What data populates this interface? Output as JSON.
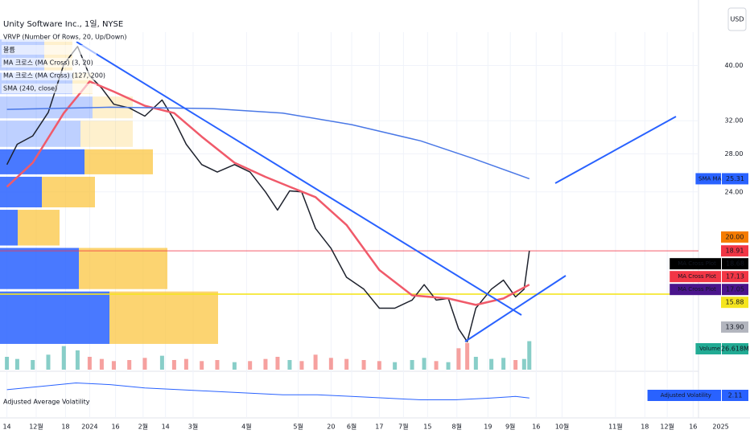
{
  "header": {
    "title": "Unity Software Inc., 1일, NYSE",
    "currency": "USD"
  },
  "legend": [
    "VRVP (Number Of Rows, 20, Up/Down)",
    "볼륨",
    "MA 크로스 (MA Cross) (3, 20)",
    "MA 크로스 (MA Cross) (127, 200)",
    "SMA (240, close)"
  ],
  "chart_data": {
    "type": "line",
    "log_scale": true,
    "grid": true,
    "xlim": [
      -4,
      431
    ],
    "ylim": [
      11.7,
      44.6
    ],
    "xticks": [
      {
        "value": 0,
        "label": "14"
      },
      {
        "value": 17,
        "label": "12월"
      },
      {
        "value": 34,
        "label": "18"
      },
      {
        "value": 48,
        "label": "2024"
      },
      {
        "value": 63,
        "label": "16"
      },
      {
        "value": 79,
        "label": "2월"
      },
      {
        "value": 92,
        "label": "14"
      },
      {
        "value": 108,
        "label": "3월"
      },
      {
        "value": 139,
        "label": "4월"
      },
      {
        "value": 169,
        "label": "5월"
      },
      {
        "value": 188,
        "label": "20"
      },
      {
        "value": 200,
        "label": "6월"
      },
      {
        "value": 216,
        "label": "17"
      },
      {
        "value": 230,
        "label": "7월"
      },
      {
        "value": 244,
        "label": "15"
      },
      {
        "value": 261,
        "label": "8월"
      },
      {
        "value": 279,
        "label": "19"
      },
      {
        "value": 292,
        "label": "9월"
      },
      {
        "value": 307,
        "label": "16"
      },
      {
        "value": 322,
        "label": "10월"
      },
      {
        "value": 353,
        "label": "11월"
      },
      {
        "value": 370,
        "label": "18"
      },
      {
        "value": 383,
        "label": "12월"
      },
      {
        "value": 398,
        "label": "16"
      },
      {
        "value": 414,
        "label": "2025"
      }
    ],
    "yticks": [
      {
        "value": 40,
        "label": "40.00"
      },
      {
        "value": 32,
        "label": "32.00"
      },
      {
        "value": 28,
        "label": "28.00"
      },
      {
        "value": 24,
        "label": "24.00"
      }
    ],
    "series": [
      {
        "color": "#1e222d",
        "x": [
          0,
          6,
          15,
          24,
          33,
          41,
          48,
          55,
          62,
          71,
          80,
          90,
          97,
          104,
          113,
          122,
          132,
          141,
          150,
          157,
          164,
          171,
          179,
          188,
          197,
          207,
          216,
          225,
          235,
          242,
          249,
          256,
          262,
          267,
          272,
          281,
          288,
          295,
          300,
          303
        ],
        "values": [
          26.8,
          29.1,
          30.1,
          33.1,
          40.2,
          43.2,
          38.4,
          36.5,
          34.2,
          33.7,
          32.6,
          34.8,
          32.1,
          29.1,
          26.8,
          26.0,
          26.8,
          26.0,
          24.0,
          22.3,
          24.1,
          24.0,
          20.7,
          19.1,
          17.0,
          16.2,
          15.0,
          15.0,
          15.5,
          16.5,
          15.5,
          15.6,
          13.8,
          13.1,
          15.0,
          16.2,
          16.8,
          15.7,
          16.2,
          18.91
        ]
      },
      {
        "color": "#f05a6a",
        "x": [
          0,
          15,
          33,
          48,
          62,
          80,
          97,
          113,
          132,
          150,
          164,
          179,
          197,
          216,
          235,
          256,
          272,
          288,
          303
        ],
        "values": [
          24.5,
          27,
          33,
          37.5,
          36,
          34,
          33,
          30,
          27,
          25.5,
          24.5,
          23.5,
          21,
          17.5,
          15.8,
          15.6,
          15.2,
          15.6,
          16.5
        ]
      },
      {
        "color": "#4a78e6",
        "x": [
          0,
          60,
          120,
          160,
          200,
          240,
          270,
          303
        ],
        "values": [
          33.5,
          33.8,
          33.6,
          33.0,
          31.5,
          29.5,
          27.5,
          25.31
        ]
      }
    ],
    "price_labels": [
      {
        "name": "SMA MA",
        "value": 25.31,
        "label": "25.31",
        "color": "#2962ff"
      },
      {
        "value": 20,
        "label": "20.00",
        "color": "#f57c00"
      },
      {
        "value": 18.91,
        "label": "18.91",
        "color": "#f23645",
        "line": true
      },
      {
        "name": "MA Cross Plot",
        "value": 18.68,
        "label": "18.68",
        "color": "#000000"
      },
      {
        "name": "MA Cross Plot",
        "value": 17.13,
        "label": "17.13",
        "color": "#f23645"
      },
      {
        "name": "MA Cross Plot",
        "value": 17.05,
        "label": "17.05",
        "color": "#4a148c"
      },
      {
        "value": 15.88,
        "label": "15.88",
        "color": "#f5e51f",
        "line": true
      },
      {
        "value": 13.9,
        "label": "13.90",
        "color": "#b2b5be"
      }
    ],
    "vrvp": {
      "bins": [
        12.9,
        16.1,
        19.2,
        22.4,
        25.6,
        28.6,
        32.1,
        35.4,
        38.97,
        44.6
      ],
      "up": [
        136,
        98,
        22,
        52,
        105,
        100,
        115,
        90,
        55
      ],
      "down": [
        135,
        110,
        52,
        66,
        85,
        65,
        50,
        25,
        35
      ]
    },
    "volume": {
      "ylim": [
        0,
        30
      ],
      "tag": {
        "name": "Volume",
        "value": 26.618,
        "label": "26.618M"
      },
      "values": [
        12,
        10,
        9,
        14,
        22,
        18,
        12,
        10,
        8,
        9,
        11,
        13,
        9,
        10,
        8,
        9,
        7,
        8,
        10,
        12,
        9,
        8,
        14,
        11,
        10,
        9,
        8,
        7,
        9,
        11,
        8,
        7,
        20,
        25,
        12,
        10,
        11,
        9,
        10,
        26.618
      ]
    },
    "volatility": {
      "title": "Adjusted Average Volatility",
      "ylim": [
        1.5,
        3.5
      ],
      "tag": {
        "name": "Adjusted Volatility",
        "value": 2.11,
        "label": "2.11"
      },
      "x": [
        0,
        20,
        40,
        60,
        80,
        100,
        120,
        140,
        160,
        180,
        200,
        220,
        240,
        260,
        280,
        295,
        303
      ],
      "values": [
        2.6,
        2.8,
        3.0,
        2.9,
        2.7,
        2.6,
        2.5,
        2.4,
        2.3,
        2.3,
        2.2,
        2.1,
        2.0,
        2.0,
        2.1,
        2.2,
        2.11
      ]
    }
  }
}
